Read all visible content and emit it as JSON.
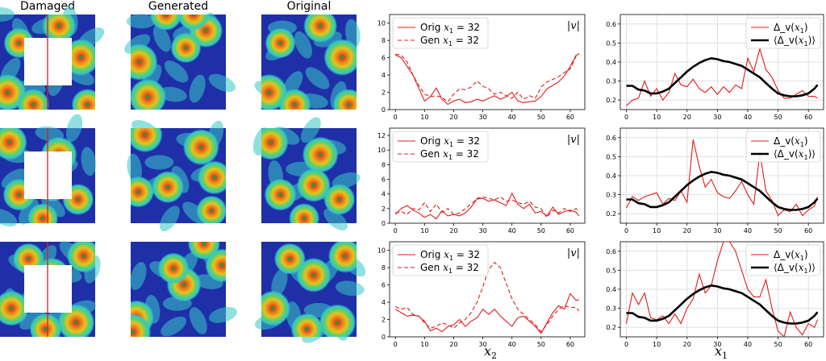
{
  "column_titles": [
    "Damaged",
    "Generated",
    "Original"
  ],
  "bottom_xlabels": [
    {
      "var": "x",
      "sub": "2"
    },
    {
      "var": "x",
      "sub": "1"
    }
  ],
  "colors": {
    "orig": "#e01b1b",
    "gen": "#e01b1b",
    "mean": "#000000",
    "grid": "#d9d9d9",
    "field_low": "#1f2fa8",
    "field_mid": "#36c6c6",
    "field_high": "#e8c21c",
    "field_peak": "#d4201a",
    "hole": "#ffffff"
  },
  "field_panels": {
    "columns": [
      "damaged",
      "generated",
      "original"
    ],
    "rows": 3,
    "damaged_hole": true,
    "damaged_cut_line_x1": 32
  },
  "chart_data": [
    {
      "type": "line",
      "row": 0,
      "panel": "velocity",
      "annotation": "|v|",
      "xlim": [
        -2,
        65
      ],
      "ylim": [
        0,
        11
      ],
      "xticks": [
        0,
        10,
        20,
        30,
        40,
        50,
        60
      ],
      "yticks": [
        0,
        2,
        4,
        6,
        8,
        10
      ],
      "legend": "top-left",
      "series": [
        {
          "name": "Orig x_1 = 32",
          "style": "solid",
          "x": [
            0,
            2,
            4,
            6,
            8,
            10,
            12,
            14,
            16,
            18,
            20,
            22,
            24,
            26,
            28,
            30,
            32,
            34,
            36,
            38,
            40,
            42,
            44,
            46,
            48,
            50,
            52,
            54,
            56,
            58,
            60,
            62,
            63
          ],
          "y": [
            6.3,
            6.0,
            5.0,
            4.0,
            2.5,
            1.0,
            1.5,
            2.5,
            1.2,
            0.6,
            1.0,
            1.2,
            0.8,
            0.9,
            1.2,
            1.0,
            1.3,
            1.6,
            1.2,
            1.5,
            2.0,
            1.0,
            0.8,
            0.9,
            1.0,
            1.5,
            2.4,
            2.8,
            3.2,
            3.9,
            5.0,
            6.3,
            6.4
          ]
        },
        {
          "name": "Gen x_1 = 32",
          "style": "dashed",
          "x": [
            0,
            2,
            4,
            6,
            8,
            10,
            12,
            14,
            16,
            18,
            20,
            22,
            24,
            26,
            28,
            30,
            32,
            34,
            36,
            38,
            40,
            42,
            44,
            46,
            48,
            50,
            52,
            54,
            56,
            58,
            60,
            62,
            63
          ],
          "y": [
            6.4,
            6.3,
            5.5,
            4.0,
            2.8,
            1.8,
            1.5,
            1.6,
            1.4,
            0.9,
            1.8,
            2.4,
            2.3,
            2.6,
            3.3,
            2.7,
            2.4,
            1.8,
            2.0,
            1.6,
            1.3,
            2.0,
            1.2,
            1.6,
            1.3,
            2.6,
            3.2,
            3.5,
            3.8,
            4.3,
            4.7,
            6.2,
            6.5
          ]
        }
      ]
    },
    {
      "type": "line",
      "row": 0,
      "panel": "delta",
      "xlim": [
        -2,
        65
      ],
      "ylim": [
        0.15,
        0.65
      ],
      "xticks": [
        0,
        10,
        20,
        30,
        40,
        50,
        60
      ],
      "yticks": [
        0.2,
        0.3,
        0.4,
        0.5,
        0.6
      ],
      "legend": "top-right",
      "series": [
        {
          "name": "Δ_v(x_1)",
          "style": "solid",
          "x": [
            0,
            2,
            4,
            6,
            8,
            10,
            12,
            14,
            16,
            18,
            20,
            22,
            24,
            26,
            28,
            30,
            32,
            34,
            36,
            38,
            40,
            42,
            44,
            46,
            48,
            50,
            52,
            54,
            56,
            58,
            60,
            62,
            63
          ],
          "y": [
            0.17,
            0.2,
            0.21,
            0.3,
            0.22,
            0.26,
            0.2,
            0.24,
            0.34,
            0.28,
            0.27,
            0.31,
            0.26,
            0.24,
            0.27,
            0.23,
            0.27,
            0.24,
            0.28,
            0.26,
            0.42,
            0.35,
            0.47,
            0.36,
            0.32,
            0.25,
            0.21,
            0.21,
            0.23,
            0.25,
            0.22,
            0.22,
            0.21
          ]
        },
        {
          "name": "⟨Δ_v(x_1)⟩",
          "style": "thick",
          "x": [
            0,
            2,
            4,
            6,
            8,
            10,
            12,
            14,
            16,
            18,
            20,
            22,
            24,
            26,
            28,
            30,
            32,
            34,
            36,
            38,
            40,
            42,
            44,
            46,
            48,
            50,
            52,
            54,
            56,
            58,
            60,
            62,
            63
          ],
          "y": [
            0.275,
            0.275,
            0.255,
            0.25,
            0.235,
            0.235,
            0.245,
            0.26,
            0.29,
            0.32,
            0.35,
            0.375,
            0.395,
            0.41,
            0.42,
            0.415,
            0.405,
            0.4,
            0.39,
            0.38,
            0.36,
            0.34,
            0.32,
            0.29,
            0.26,
            0.235,
            0.225,
            0.22,
            0.22,
            0.225,
            0.235,
            0.26,
            0.28
          ]
        }
      ]
    },
    {
      "type": "line",
      "row": 1,
      "panel": "velocity",
      "annotation": "|v|",
      "xlim": [
        -2,
        65
      ],
      "ylim": [
        0,
        13
      ],
      "xticks": [
        0,
        10,
        20,
        30,
        40,
        50,
        60
      ],
      "yticks": [
        0,
        2,
        4,
        6,
        8,
        10,
        12
      ],
      "legend": "top-left",
      "series": [
        {
          "name": "Orig x_1 = 32",
          "style": "solid",
          "x": [
            0,
            2,
            4,
            6,
            8,
            10,
            12,
            14,
            16,
            18,
            20,
            22,
            24,
            26,
            28,
            30,
            32,
            34,
            36,
            38,
            40,
            42,
            44,
            46,
            48,
            50,
            52,
            54,
            56,
            58,
            60,
            62,
            63
          ],
          "y": [
            1.2,
            2.0,
            2.4,
            1.8,
            1.4,
            0.8,
            1.2,
            0.6,
            1.7,
            1.0,
            1.2,
            1.0,
            1.4,
            2.2,
            3.3,
            3.4,
            3.0,
            3.2,
            2.8,
            2.4,
            4.1,
            2.6,
            2.0,
            2.6,
            1.4,
            1.6,
            1.0,
            2.2,
            1.2,
            1.6,
            1.8,
            1.5,
            1.0
          ]
        },
        {
          "name": "Gen x_1 = 32",
          "style": "dashed",
          "x": [
            0,
            2,
            4,
            6,
            8,
            10,
            12,
            14,
            16,
            18,
            20,
            22,
            24,
            26,
            28,
            30,
            32,
            34,
            36,
            38,
            40,
            42,
            44,
            46,
            48,
            50,
            52,
            54,
            56,
            58,
            60,
            62,
            63
          ],
          "y": [
            1.4,
            1.6,
            1.2,
            2.0,
            1.8,
            2.8,
            1.6,
            2.6,
            1.5,
            2.0,
            1.2,
            1.4,
            2.0,
            2.6,
            3.4,
            3.6,
            3.4,
            3.2,
            3.6,
            3.0,
            3.2,
            2.8,
            2.6,
            3.0,
            2.2,
            2.0,
            0.8,
            1.8,
            1.4,
            2.0,
            1.6,
            2.0,
            1.6
          ]
        }
      ]
    },
    {
      "type": "line",
      "row": 1,
      "panel": "delta",
      "xlim": [
        -2,
        65
      ],
      "ylim": [
        0.15,
        0.65
      ],
      "xticks": [
        0,
        10,
        20,
        30,
        40,
        50,
        60
      ],
      "yticks": [
        0.2,
        0.3,
        0.4,
        0.5,
        0.6
      ],
      "legend": "top-right",
      "series": [
        {
          "name": "Δ_v(x_1)",
          "style": "solid",
          "x": [
            0,
            2,
            4,
            6,
            8,
            10,
            12,
            14,
            16,
            18,
            20,
            22,
            24,
            26,
            28,
            30,
            32,
            34,
            36,
            38,
            40,
            42,
            44,
            46,
            48,
            50,
            52,
            54,
            56,
            58,
            60,
            62,
            63
          ],
          "y": [
            0.23,
            0.29,
            0.27,
            0.29,
            0.3,
            0.31,
            0.25,
            0.28,
            0.27,
            0.32,
            0.26,
            0.59,
            0.45,
            0.34,
            0.38,
            0.31,
            0.29,
            0.28,
            0.32,
            0.37,
            0.3,
            0.25,
            0.52,
            0.32,
            0.27,
            0.19,
            0.22,
            0.21,
            0.25,
            0.19,
            0.22,
            0.24,
            0.29
          ]
        },
        {
          "name": "⟨Δ_v(x_1)⟩",
          "style": "thick",
          "x": [
            0,
            2,
            4,
            6,
            8,
            10,
            12,
            14,
            16,
            18,
            20,
            22,
            24,
            26,
            28,
            30,
            32,
            34,
            36,
            38,
            40,
            42,
            44,
            46,
            48,
            50,
            52,
            54,
            56,
            58,
            60,
            62,
            63
          ],
          "y": [
            0.275,
            0.275,
            0.255,
            0.25,
            0.235,
            0.235,
            0.245,
            0.26,
            0.29,
            0.32,
            0.35,
            0.375,
            0.395,
            0.41,
            0.42,
            0.415,
            0.405,
            0.4,
            0.39,
            0.38,
            0.36,
            0.34,
            0.32,
            0.29,
            0.26,
            0.235,
            0.225,
            0.22,
            0.22,
            0.225,
            0.235,
            0.26,
            0.28
          ]
        }
      ]
    },
    {
      "type": "line",
      "row": 2,
      "panel": "velocity",
      "annotation": "|v|",
      "xlim": [
        -2,
        65
      ],
      "ylim": [
        0,
        11
      ],
      "xticks": [
        0,
        10,
        20,
        30,
        40,
        50,
        60
      ],
      "yticks": [
        0,
        2,
        4,
        6,
        8,
        10
      ],
      "legend": "top-left",
      "series": [
        {
          "name": "Orig x_1 = 32",
          "style": "solid",
          "x": [
            0,
            2,
            4,
            6,
            8,
            10,
            12,
            14,
            16,
            18,
            20,
            22,
            24,
            26,
            28,
            30,
            32,
            34,
            36,
            38,
            40,
            42,
            44,
            46,
            48,
            50,
            52,
            54,
            56,
            58,
            60,
            62,
            63
          ],
          "y": [
            3.2,
            2.8,
            2.4,
            2.5,
            2.4,
            1.8,
            0.7,
            1.0,
            0.6,
            1.2,
            1.4,
            2.0,
            1.2,
            1.8,
            2.2,
            3.2,
            2.6,
            3.2,
            2.4,
            1.8,
            1.2,
            2.2,
            2.4,
            1.8,
            1.2,
            0.4,
            1.6,
            2.8,
            3.6,
            3.2,
            5.0,
            4.2,
            4.3
          ]
        },
        {
          "name": "Gen x_1 = 32",
          "style": "dashed",
          "x": [
            0,
            2,
            4,
            6,
            8,
            10,
            12,
            14,
            16,
            18,
            20,
            22,
            24,
            26,
            28,
            30,
            32,
            34,
            36,
            38,
            40,
            42,
            44,
            46,
            48,
            50,
            52,
            54,
            56,
            58,
            60,
            62,
            63
          ],
          "y": [
            3.5,
            3.2,
            3.4,
            2.6,
            2.4,
            1.6,
            1.0,
            1.2,
            1.6,
            1.4,
            1.0,
            1.6,
            2.0,
            2.8,
            4.0,
            5.8,
            7.8,
            8.6,
            8.0,
            6.2,
            4.4,
            3.2,
            2.6,
            2.0,
            1.4,
            0.6,
            1.4,
            2.4,
            3.2,
            3.6,
            3.4,
            3.4,
            3.0
          ]
        }
      ]
    },
    {
      "type": "line",
      "row": 2,
      "panel": "delta",
      "xlim": [
        -2,
        65
      ],
      "ylim": [
        0.15,
        0.65
      ],
      "xticks": [
        0,
        10,
        20,
        30,
        40,
        50,
        60
      ],
      "yticks": [
        0.2,
        0.3,
        0.4,
        0.5,
        0.6
      ],
      "legend": "top-right",
      "series": [
        {
          "name": "Δ_v(x_1)",
          "style": "solid",
          "x": [
            0,
            2,
            4,
            6,
            8,
            10,
            12,
            14,
            16,
            18,
            20,
            22,
            24,
            26,
            28,
            30,
            32,
            34,
            36,
            38,
            40,
            42,
            44,
            46,
            48,
            50,
            52,
            54,
            56,
            58,
            60,
            62,
            63
          ],
          "y": [
            0.22,
            0.38,
            0.32,
            0.38,
            0.25,
            0.24,
            0.26,
            0.22,
            0.27,
            0.22,
            0.3,
            0.35,
            0.48,
            0.38,
            0.42,
            0.55,
            0.65,
            0.65,
            0.6,
            0.5,
            0.4,
            0.36,
            0.36,
            0.45,
            0.3,
            0.18,
            0.15,
            0.28,
            0.2,
            0.16,
            0.22,
            0.2,
            0.24
          ]
        },
        {
          "name": "⟨Δ_v(x_1)⟩",
          "style": "thick",
          "x": [
            0,
            2,
            4,
            6,
            8,
            10,
            12,
            14,
            16,
            18,
            20,
            22,
            24,
            26,
            28,
            30,
            32,
            34,
            36,
            38,
            40,
            42,
            44,
            46,
            48,
            50,
            52,
            54,
            56,
            58,
            60,
            62,
            63
          ],
          "y": [
            0.275,
            0.275,
            0.255,
            0.25,
            0.235,
            0.235,
            0.245,
            0.26,
            0.29,
            0.32,
            0.35,
            0.375,
            0.395,
            0.41,
            0.42,
            0.415,
            0.405,
            0.4,
            0.39,
            0.38,
            0.36,
            0.34,
            0.32,
            0.29,
            0.26,
            0.235,
            0.225,
            0.22,
            0.22,
            0.225,
            0.235,
            0.26,
            0.28
          ]
        }
      ]
    }
  ]
}
